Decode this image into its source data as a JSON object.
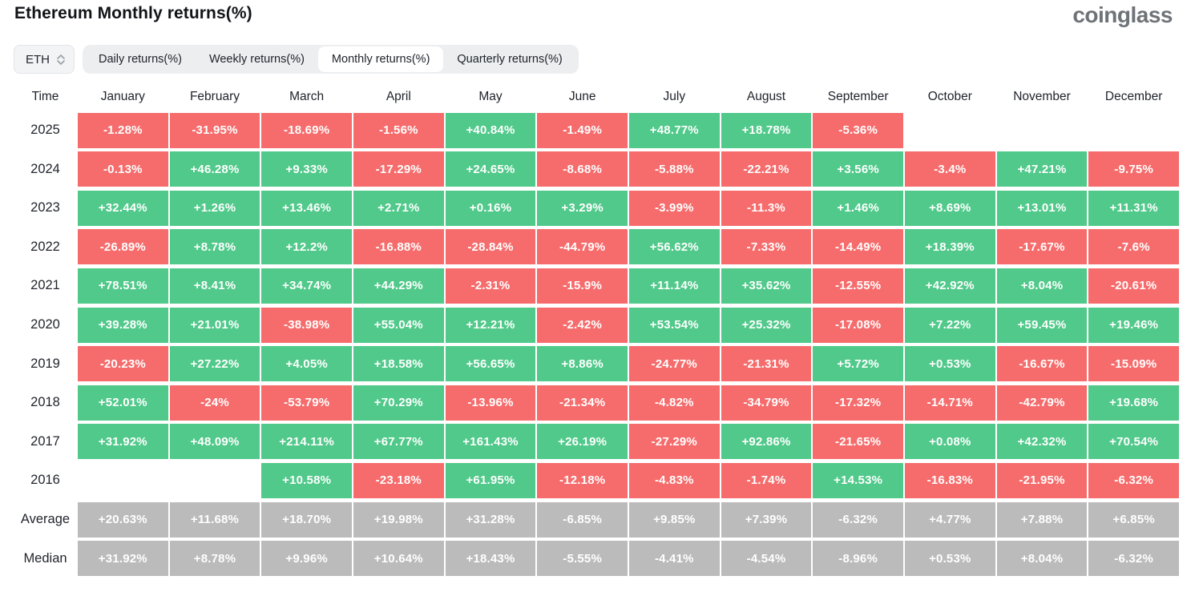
{
  "page": {
    "title": "Ethereum Monthly returns(%)",
    "brand": "coinglass"
  },
  "controls": {
    "symbol_select": {
      "value": "ETH"
    },
    "tabs": [
      {
        "label": "Daily returns(%)",
        "active": false
      },
      {
        "label": "Weekly returns(%)",
        "active": false
      },
      {
        "label": "Monthly returns(%)",
        "active": true
      },
      {
        "label": "Quarterly returns(%)",
        "active": false
      }
    ]
  },
  "colors": {
    "positive": "#50c98a",
    "negative": "#f66c6c",
    "summary": "#bbbbbb",
    "brand_grey": "#6e7378"
  },
  "chart_data": {
    "type": "heatmap",
    "title": "Ethereum Monthly returns(%)",
    "columns": [
      "Time",
      "January",
      "February",
      "March",
      "April",
      "May",
      "June",
      "July",
      "August",
      "September",
      "October",
      "November",
      "December"
    ],
    "rows": [
      {
        "label": "2025",
        "kind": "year",
        "values": [
          "-1.28%",
          "-31.95%",
          "-18.69%",
          "-1.56%",
          "+40.84%",
          "-1.49%",
          "+48.77%",
          "+18.78%",
          "-5.36%",
          null,
          null,
          null
        ]
      },
      {
        "label": "2024",
        "kind": "year",
        "values": [
          "-0.13%",
          "+46.28%",
          "+9.33%",
          "-17.29%",
          "+24.65%",
          "-8.68%",
          "-5.88%",
          "-22.21%",
          "+3.56%",
          "-3.4%",
          "+47.21%",
          "-9.75%"
        ]
      },
      {
        "label": "2023",
        "kind": "year",
        "values": [
          "+32.44%",
          "+1.26%",
          "+13.46%",
          "+2.71%",
          "+0.16%",
          "+3.29%",
          "-3.99%",
          "-11.3%",
          "+1.46%",
          "+8.69%",
          "+13.01%",
          "+11.31%"
        ]
      },
      {
        "label": "2022",
        "kind": "year",
        "values": [
          "-26.89%",
          "+8.78%",
          "+12.2%",
          "-16.88%",
          "-28.84%",
          "-44.79%",
          "+56.62%",
          "-7.33%",
          "-14.49%",
          "+18.39%",
          "-17.67%",
          "-7.6%"
        ]
      },
      {
        "label": "2021",
        "kind": "year",
        "values": [
          "+78.51%",
          "+8.41%",
          "+34.74%",
          "+44.29%",
          "-2.31%",
          "-15.9%",
          "+11.14%",
          "+35.62%",
          "-12.55%",
          "+42.92%",
          "+8.04%",
          "-20.61%"
        ]
      },
      {
        "label": "2020",
        "kind": "year",
        "values": [
          "+39.28%",
          "+21.01%",
          "-38.98%",
          "+55.04%",
          "+12.21%",
          "-2.42%",
          "+53.54%",
          "+25.32%",
          "-17.08%",
          "+7.22%",
          "+59.45%",
          "+19.46%"
        ]
      },
      {
        "label": "2019",
        "kind": "year",
        "values": [
          "-20.23%",
          "+27.22%",
          "+4.05%",
          "+18.58%",
          "+56.65%",
          "+8.86%",
          "-24.77%",
          "-21.31%",
          "+5.72%",
          "+0.53%",
          "-16.67%",
          "-15.09%"
        ]
      },
      {
        "label": "2018",
        "kind": "year",
        "values": [
          "+52.01%",
          "-24%",
          "-53.79%",
          "+70.29%",
          "-13.96%",
          "-21.34%",
          "-4.82%",
          "-34.79%",
          "-17.32%",
          "-14.71%",
          "-42.79%",
          "+19.68%"
        ]
      },
      {
        "label": "2017",
        "kind": "year",
        "values": [
          "+31.92%",
          "+48.09%",
          "+214.11%",
          "+67.77%",
          "+161.43%",
          "+26.19%",
          "-27.29%",
          "+92.86%",
          "-21.65%",
          "+0.08%",
          "+42.32%",
          "+70.54%"
        ]
      },
      {
        "label": "2016",
        "kind": "year",
        "values": [
          null,
          null,
          "+10.58%",
          "-23.18%",
          "+61.95%",
          "-12.18%",
          "-4.83%",
          "-1.74%",
          "+14.53%",
          "-16.83%",
          "-21.95%",
          "-6.32%"
        ]
      },
      {
        "label": "Average",
        "kind": "summary",
        "values": [
          "+20.63%",
          "+11.68%",
          "+18.70%",
          "+19.98%",
          "+31.28%",
          "-6.85%",
          "+9.85%",
          "+7.39%",
          "-6.32%",
          "+4.77%",
          "+7.88%",
          "+6.85%"
        ]
      },
      {
        "label": "Median",
        "kind": "summary",
        "values": [
          "+31.92%",
          "+8.78%",
          "+9.96%",
          "+10.64%",
          "+18.43%",
          "-5.55%",
          "-4.41%",
          "-4.54%",
          "-8.96%",
          "+0.53%",
          "+8.04%",
          "-6.32%"
        ]
      }
    ]
  }
}
